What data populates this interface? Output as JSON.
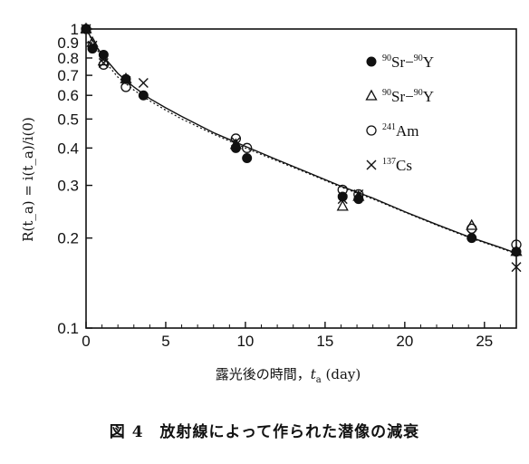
{
  "chart_data": {
    "type": "scatter",
    "xlabel": "露光後の時間，t_a (day)",
    "xlabel_parts": {
      "prefix": "露光後の時間，",
      "var": "t",
      "sub": "a",
      "unit": " (day)"
    },
    "ylabel": "R(t_a) = i(t_a)/i(0)",
    "xlim": [
      0,
      27
    ],
    "ylim": [
      0.1,
      1
    ],
    "yscale": "log",
    "x_ticks": [
      "0",
      "5",
      "10",
      "15",
      "20",
      "25"
    ],
    "y_ticks": [
      "0.1",
      "0.2",
      "0.3",
      "0.4",
      "0.5",
      "0.6",
      "0.7",
      "0.8",
      "0.9",
      "1"
    ],
    "legend_position": "top-right",
    "series": [
      {
        "name": "90Sr-90Y",
        "label_sup1": "90",
        "label_base1": "Sr",
        "label_dash": "−",
        "label_sup2": "90",
        "label_base2": "Y",
        "marker": "filled-circle",
        "x": [
          0,
          0.4,
          1.1,
          2.5,
          3.6,
          9.4,
          10.1,
          16.1,
          17.1,
          24.2,
          27
        ],
        "y": [
          1.0,
          0.86,
          0.82,
          0.68,
          0.6,
          0.4,
          0.37,
          0.275,
          0.27,
          0.2,
          0.18
        ]
      },
      {
        "name": "90Sr-90Y",
        "label_sup1": "90",
        "label_base1": "Sr",
        "label_dash": "−",
        "label_sup2": "90",
        "label_base2": "Y",
        "marker": "open-triangle",
        "x": [
          0,
          0.4,
          1.1,
          2.5,
          9.4,
          16.1,
          17.1,
          24.2,
          27
        ],
        "y": [
          1.0,
          0.9,
          0.78,
          0.68,
          0.41,
          0.255,
          0.275,
          0.22,
          0.18
        ]
      },
      {
        "name": "241Am",
        "label_sup1": "241",
        "label_base1": "Am",
        "marker": "open-circle",
        "x": [
          0,
          1.1,
          2.5,
          9.4,
          10.1,
          16.1,
          17.1,
          24.2,
          27
        ],
        "y": [
          1.0,
          0.76,
          0.64,
          0.43,
          0.4,
          0.29,
          0.28,
          0.215,
          0.19
        ]
      },
      {
        "name": "137Cs",
        "label_sup1": "137",
        "label_base1": "Cs",
        "marker": "cross",
        "x": [
          0,
          0.4,
          1.1,
          2.5,
          3.6,
          9.4,
          16.1,
          17.1,
          24.2,
          27
        ],
        "y": [
          1.0,
          0.88,
          0.77,
          0.67,
          0.66,
          0.42,
          0.27,
          0.28,
          0.205,
          0.16
        ]
      }
    ],
    "fit_lines": [
      {
        "style": "solid",
        "x": [
          0,
          0.5,
          1,
          2,
          3,
          4,
          5,
          6,
          8,
          10,
          12,
          14,
          16,
          18,
          20,
          22,
          24,
          26,
          27
        ],
        "y": [
          1.0,
          0.9,
          0.82,
          0.71,
          0.64,
          0.585,
          0.545,
          0.51,
          0.45,
          0.405,
          0.365,
          0.33,
          0.298,
          0.272,
          0.245,
          0.222,
          0.202,
          0.186,
          0.178
        ]
      },
      {
        "style": "dotted",
        "x": [
          0,
          0.5,
          1,
          2,
          3,
          4,
          5,
          6,
          8,
          10,
          12,
          14,
          16,
          18,
          20,
          22,
          24,
          26,
          27
        ],
        "y": [
          1.0,
          0.89,
          0.8,
          0.69,
          0.625,
          0.575,
          0.535,
          0.5,
          0.445,
          0.4,
          0.362,
          0.328,
          0.296,
          0.27,
          0.244,
          0.221,
          0.201,
          0.185,
          0.177
        ]
      }
    ]
  },
  "caption": "図 4　放射線によって作られた潜像の減衰"
}
